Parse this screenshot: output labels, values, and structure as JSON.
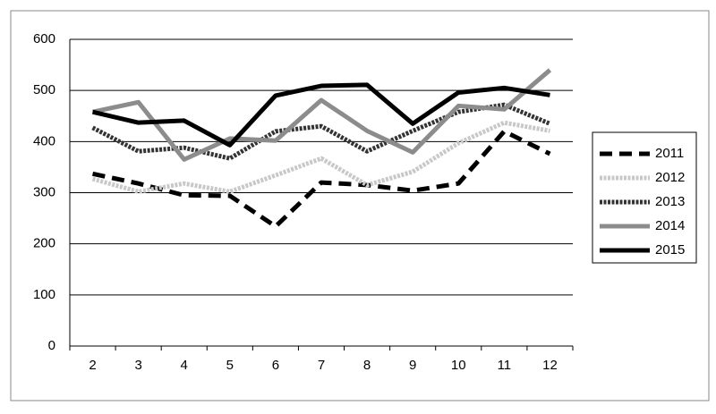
{
  "chart_data": {
    "type": "line",
    "categories": [
      "2",
      "3",
      "4",
      "5",
      "6",
      "7",
      "8",
      "9",
      "10",
      "11",
      "12"
    ],
    "series": [
      {
        "name": "2011",
        "color": "#000000",
        "dash": "dashed",
        "values": [
          337,
          318,
          295,
          294,
          234,
          320,
          315,
          304,
          318,
          420,
          376
        ]
      },
      {
        "name": "2012",
        "color": "#c8c8c8",
        "dash": "dotted",
        "values": [
          327,
          302,
          318,
          302,
          334,
          367,
          315,
          341,
          397,
          437,
          421
        ]
      },
      {
        "name": "2013",
        "color": "#333333",
        "dash": "dotted",
        "values": [
          427,
          381,
          388,
          367,
          420,
          430,
          381,
          421,
          458,
          472,
          435
        ]
      },
      {
        "name": "2014",
        "color": "#8c8c8c",
        "dash": "solid",
        "values": [
          458,
          477,
          365,
          406,
          402,
          481,
          421,
          379,
          470,
          463,
          540
        ]
      },
      {
        "name": "2015",
        "color": "#000000",
        "dash": "solid",
        "values": [
          458,
          437,
          441,
          393,
          490,
          509,
          511,
          435,
          496,
          505,
          491
        ]
      }
    ],
    "ylim": [
      0,
      600
    ],
    "yticks": [
      0,
      100,
      200,
      300,
      400,
      500,
      600
    ],
    "grid": true,
    "legend": "right"
  }
}
